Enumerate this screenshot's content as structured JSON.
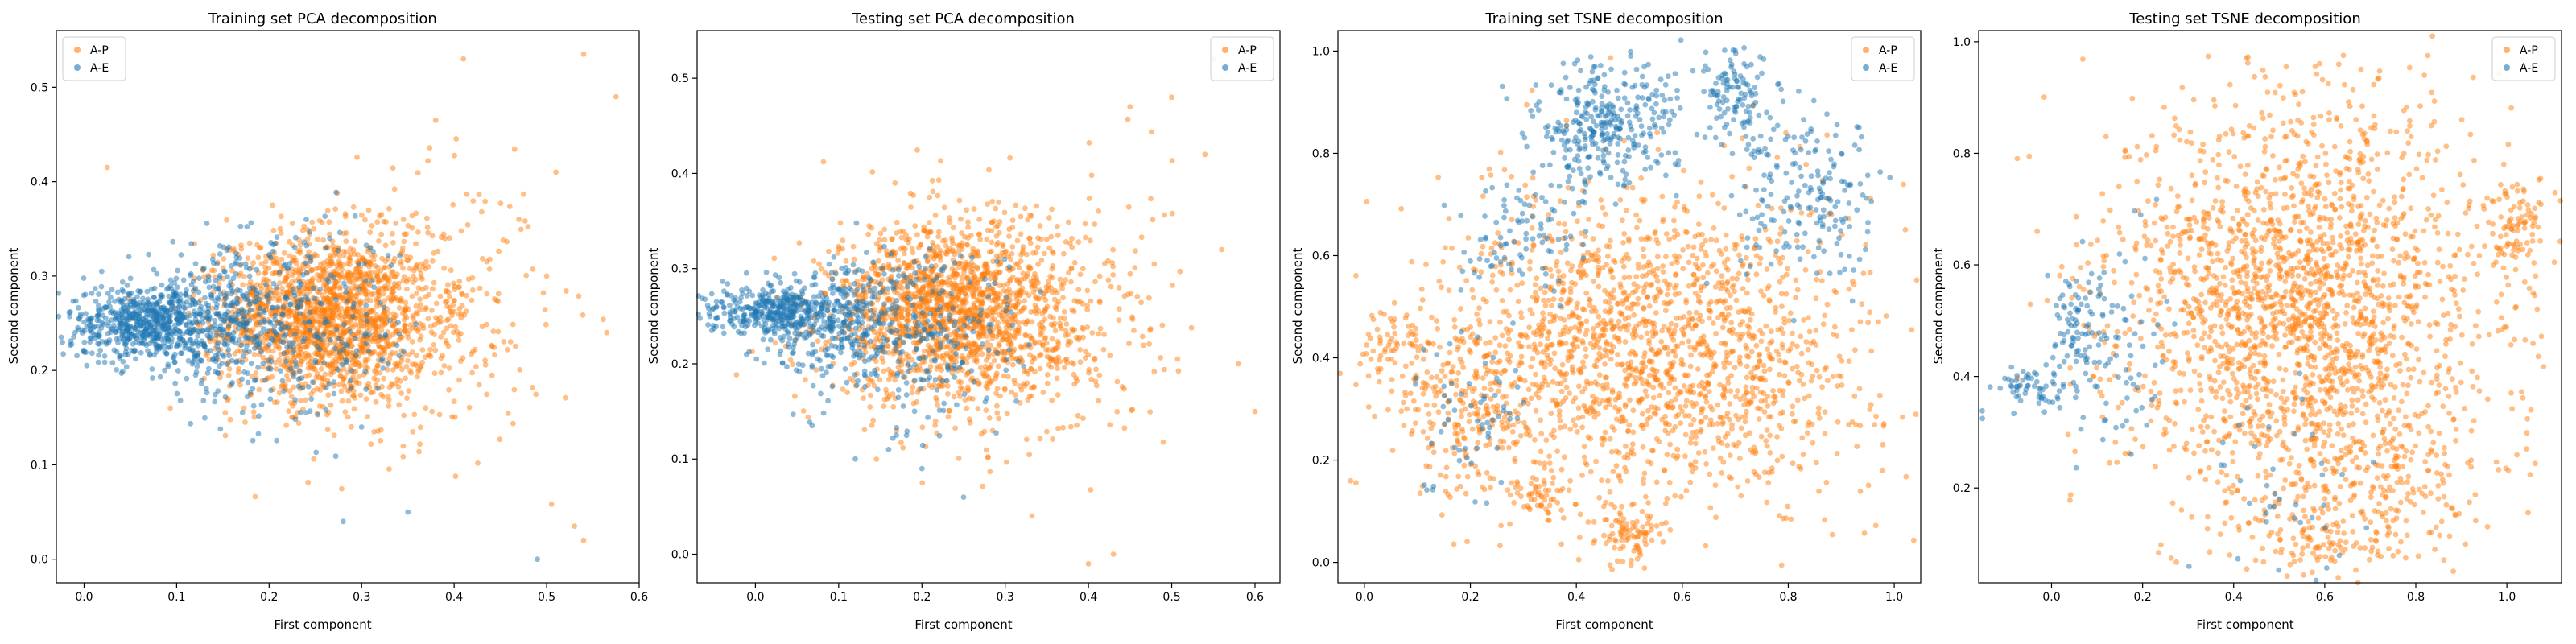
{
  "colors": {
    "A-P": "#ff7f0e",
    "A-E": "#1f77b4"
  },
  "chart_data": [
    {
      "type": "scatter",
      "title": "Training set PCA decomposition",
      "xlabel": "First component",
      "ylabel": "Second component",
      "xlim": [
        -0.03,
        0.6
      ],
      "ylim": [
        -0.025,
        0.56
      ],
      "xticks": [
        0.0,
        0.1,
        0.2,
        0.3,
        0.4,
        0.5,
        0.6
      ],
      "yticks": [
        0.0,
        0.1,
        0.2,
        0.3,
        0.4,
        0.5
      ],
      "grid": false,
      "legend": {
        "placement": "top-left",
        "entries": [
          "A-P",
          "A-E"
        ]
      },
      "series": [
        {
          "name": "A-P",
          "color": "#ff7f0e",
          "points": [
            {
              "cx": 0.27,
              "cy": 0.255,
              "sx": 0.055,
              "sy": 0.045,
              "n": 1350
            },
            {
              "cx": 0.36,
              "cy": 0.26,
              "sx": 0.07,
              "sy": 0.07,
              "n": 320
            },
            {
              "cx": 0.2,
              "cy": 0.26,
              "sx": 0.04,
              "sy": 0.04,
              "n": 250
            }
          ],
          "values": [
            [
              0.54,
              0.535
            ],
            [
              0.575,
              0.49
            ],
            [
              0.41,
              0.53
            ],
            [
              0.38,
              0.465
            ],
            [
              0.025,
              0.415
            ],
            [
              0.53,
              0.035
            ],
            [
              0.54,
              0.02
            ],
            [
              0.51,
              0.41
            ],
            [
              0.565,
              0.24
            ],
            [
              0.47,
              0.36
            ],
            [
              0.5,
              0.3
            ]
          ]
        },
        {
          "name": "A-E",
          "color": "#1f77b4",
          "points": [
            {
              "cx": 0.07,
              "cy": 0.25,
              "sx": 0.045,
              "sy": 0.02,
              "n": 650
            },
            {
              "cx": 0.16,
              "cy": 0.25,
              "sx": 0.055,
              "sy": 0.04,
              "n": 350
            },
            {
              "cx": 0.25,
              "cy": 0.24,
              "sx": 0.06,
              "sy": 0.05,
              "n": 180
            }
          ],
          "values": [
            [
              0.49,
              0.0
            ],
            [
              0.28,
              0.04
            ],
            [
              0.35,
              0.05
            ],
            [
              0.3,
              0.14
            ]
          ]
        }
      ]
    },
    {
      "type": "scatter",
      "title": "Testing set PCA decomposition",
      "xlabel": "First component",
      "ylabel": "Second component",
      "xlim": [
        -0.07,
        0.63
      ],
      "ylim": [
        -0.03,
        0.55
      ],
      "xticks": [
        0.0,
        0.1,
        0.2,
        0.3,
        0.4,
        0.5,
        0.6
      ],
      "yticks": [
        0.0,
        0.1,
        0.2,
        0.3,
        0.4,
        0.5
      ],
      "grid": false,
      "legend": {
        "placement": "top-right",
        "entries": [
          "A-P",
          "A-E"
        ]
      },
      "series": [
        {
          "name": "A-P",
          "color": "#ff7f0e",
          "points": [
            {
              "cx": 0.23,
              "cy": 0.255,
              "sx": 0.07,
              "sy": 0.045,
              "n": 1500
            },
            {
              "cx": 0.34,
              "cy": 0.25,
              "sx": 0.08,
              "sy": 0.075,
              "n": 350
            }
          ],
          "values": [
            [
              0.55,
              0.52
            ],
            [
              0.5,
              0.48
            ],
            [
              0.45,
              0.47
            ],
            [
              0.6,
              0.15
            ],
            [
              0.58,
              0.2
            ],
            [
              0.4,
              -0.01
            ],
            [
              0.43,
              0.0
            ],
            [
              0.54,
              0.42
            ],
            [
              0.56,
              0.32
            ]
          ]
        },
        {
          "name": "A-E",
          "color": "#1f77b4",
          "points": [
            {
              "cx": 0.02,
              "cy": 0.255,
              "sx": 0.04,
              "sy": 0.012,
              "n": 350
            },
            {
              "cx": 0.11,
              "cy": 0.245,
              "sx": 0.06,
              "sy": 0.035,
              "n": 380
            },
            {
              "cx": 0.22,
              "cy": 0.22,
              "sx": 0.06,
              "sy": 0.05,
              "n": 150
            }
          ],
          "values": [
            [
              0.12,
              0.1
            ],
            [
              0.2,
              0.09
            ],
            [
              0.16,
              0.11
            ],
            [
              0.25,
              0.06
            ]
          ]
        }
      ]
    },
    {
      "type": "scatter",
      "title": "Training set TSNE decomposition",
      "xlabel": "First component",
      "ylabel": "Second component",
      "xlim": [
        -0.05,
        1.05
      ],
      "ylim": [
        -0.04,
        1.04
      ],
      "xticks": [
        0.0,
        0.2,
        0.4,
        0.6,
        0.8,
        1.0
      ],
      "yticks": [
        0.0,
        0.2,
        0.4,
        0.6,
        0.8,
        1.0
      ],
      "grid": false,
      "legend": {
        "placement": "top-right",
        "entries": [
          "A-P",
          "A-E"
        ]
      },
      "series": [
        {
          "name": "A-P",
          "color": "#ff7f0e",
          "points": [
            {
              "cx": 0.55,
              "cy": 0.42,
              "sx": 0.2,
              "sy": 0.15,
              "n": 1700
            },
            {
              "cx": 0.2,
              "cy": 0.3,
              "sx": 0.07,
              "sy": 0.09,
              "n": 200
            },
            {
              "cx": 0.5,
              "cy": 0.06,
              "sx": 0.035,
              "sy": 0.03,
              "n": 90
            },
            {
              "cx": 0.33,
              "cy": 0.13,
              "sx": 0.03,
              "sy": 0.02,
              "n": 50
            },
            {
              "cx": 0.05,
              "cy": 0.43,
              "sx": 0.03,
              "sy": 0.04,
              "n": 60
            }
          ],
          "values": []
        },
        {
          "name": "A-E",
          "color": "#1f77b4",
          "points": [
            {
              "cx": 0.45,
              "cy": 0.85,
              "sx": 0.07,
              "sy": 0.06,
              "n": 320
            },
            {
              "cx": 0.7,
              "cy": 0.9,
              "sx": 0.04,
              "sy": 0.05,
              "n": 120
            },
            {
              "cx": 0.85,
              "cy": 0.7,
              "sx": 0.07,
              "sy": 0.08,
              "n": 180
            },
            {
              "cx": 0.3,
              "cy": 0.65,
              "sx": 0.06,
              "sy": 0.06,
              "n": 90
            },
            {
              "cx": 0.2,
              "cy": 0.3,
              "sx": 0.06,
              "sy": 0.08,
              "n": 60
            }
          ],
          "values": []
        }
      ]
    },
    {
      "type": "scatter",
      "title": "Testing set TSNE decomposition",
      "xlabel": "First component",
      "ylabel": "Second component",
      "xlim": [
        -0.16,
        1.12
      ],
      "ylim": [
        0.03,
        1.02
      ],
      "xticks": [
        0.0,
        0.2,
        0.4,
        0.6,
        0.8,
        1.0
      ],
      "yticks": [
        0.2,
        0.4,
        0.6,
        0.8,
        1.0
      ],
      "grid": false,
      "legend": {
        "placement": "top-right",
        "entries": [
          "A-P",
          "A-E"
        ]
      },
      "series": [
        {
          "name": "A-P",
          "color": "#ff7f0e",
          "points": [
            {
              "cx": 0.55,
              "cy": 0.52,
              "sx": 0.2,
              "sy": 0.19,
              "n": 2100
            },
            {
              "cx": 1.02,
              "cy": 0.67,
              "sx": 0.035,
              "sy": 0.04,
              "n": 90
            },
            {
              "cx": 0.75,
              "cy": 0.2,
              "sx": 0.1,
              "sy": 0.06,
              "n": 150
            },
            {
              "cx": 0.6,
              "cy": 0.1,
              "sx": 0.08,
              "sy": 0.03,
              "n": 80
            }
          ],
          "values": []
        },
        {
          "name": "A-E",
          "color": "#1f77b4",
          "points": [
            {
              "cx": -0.05,
              "cy": 0.38,
              "sx": 0.04,
              "sy": 0.02,
              "n": 60
            },
            {
              "cx": 0.05,
              "cy": 0.48,
              "sx": 0.03,
              "sy": 0.06,
              "n": 80
            },
            {
              "cx": 0.15,
              "cy": 0.45,
              "sx": 0.05,
              "sy": 0.1,
              "n": 70
            },
            {
              "cx": 0.5,
              "cy": 0.2,
              "sx": 0.1,
              "sy": 0.1,
              "n": 40
            }
          ],
          "values": []
        }
      ]
    }
  ]
}
